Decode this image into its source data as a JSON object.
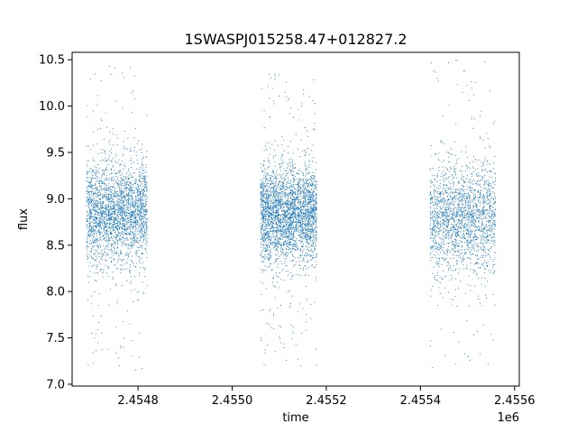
{
  "chart_data": {
    "type": "scatter",
    "title": "1SWASPJ015258.47+012827.2",
    "xlabel": "time",
    "ylabel": "flux",
    "x_offset_label": "1e6",
    "xlim": [
      2.45466,
      2.45561
    ],
    "ylim": [
      6.98,
      10.58
    ],
    "x_ticks": [
      2.4548,
      2.455,
      2.4552,
      2.4554,
      2.4556
    ],
    "x_tick_labels": [
      "2.4548",
      "2.4550",
      "2.4552",
      "2.4554",
      "2.4556"
    ],
    "y_ticks": [
      7.0,
      7.5,
      8.0,
      8.5,
      9.0,
      9.5,
      10.0,
      10.5
    ],
    "y_tick_labels": [
      "7.0",
      "7.5",
      "8.0",
      "8.5",
      "9.0",
      "9.5",
      "10.0",
      "10.5"
    ],
    "grid": false,
    "marker_color": "#1f77b4",
    "series": [
      {
        "segments": [
          {
            "x_start": 2.45469,
            "x_end": 2.45482,
            "median_flux": 8.85,
            "spread": 0.28,
            "min_flux": 7.15,
            "max_flux": 10.45,
            "point_count": 2600
          },
          {
            "x_start": 2.45506,
            "x_end": 2.45518,
            "median_flux": 8.85,
            "spread": 0.26,
            "min_flux": 7.15,
            "max_flux": 10.35,
            "point_count": 3000
          },
          {
            "x_start": 2.45542,
            "x_end": 2.45556,
            "median_flux": 8.8,
            "spread": 0.3,
            "min_flux": 7.15,
            "max_flux": 10.5,
            "point_count": 2000
          }
        ]
      }
    ]
  }
}
